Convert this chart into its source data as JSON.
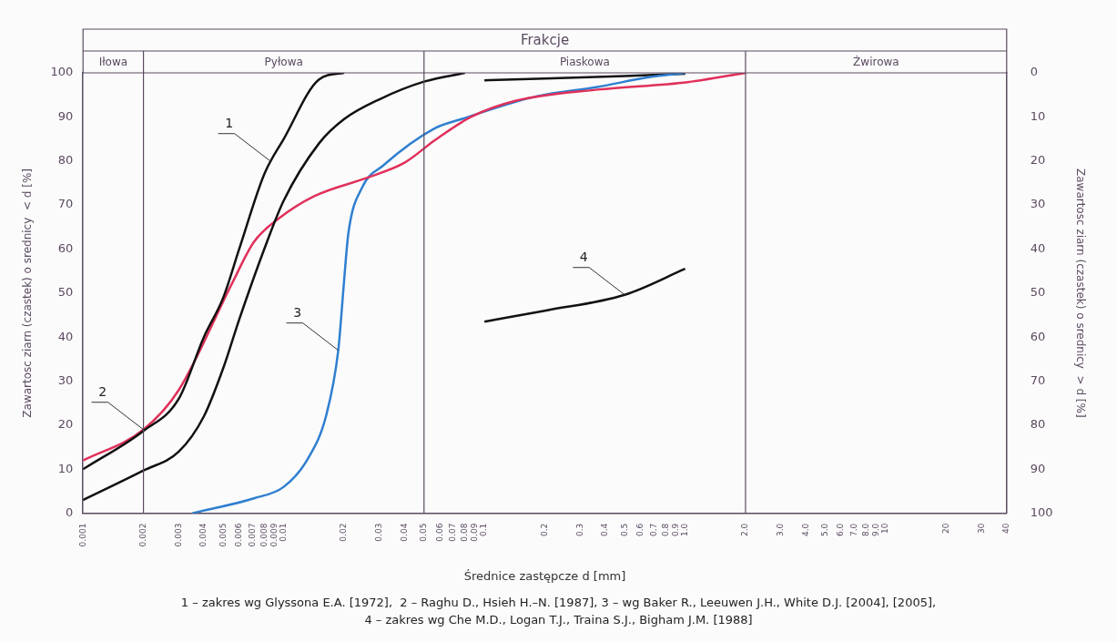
{
  "chart_data": {
    "type": "line",
    "title": "Frakcje",
    "xlabel": "Średnice zastępcze d [mm]",
    "ylabel": "Zawartosc ziarn (czastek) o srednicy  < d [%]",
    "y2label": "Zawartosc ziarn (czastek) o srednicy  > d [%]",
    "log": "x",
    "grid": false,
    "legend": false,
    "xlim": [
      0.001,
      40
    ],
    "xticks": [
      0.001,
      0.002,
      0.003,
      0.004,
      0.005,
      0.006,
      0.007,
      0.008,
      0.009,
      0.01,
      0.02,
      0.03,
      0.04,
      0.05,
      0.06,
      0.07,
      0.08,
      0.09,
      0.1,
      0.2,
      0.3,
      0.4,
      0.5,
      0.6,
      0.7,
      0.8,
      0.9,
      {
        "value": 1,
        "label": "1.0"
      },
      {
        "value": 2,
        "label": "2.0"
      },
      {
        "value": 3,
        "label": "3.0"
      },
      {
        "value": 4,
        "label": "4.0"
      },
      {
        "value": 5,
        "label": "5.0"
      },
      {
        "value": 6,
        "label": "6.0"
      },
      {
        "value": 7,
        "label": "7.0"
      },
      {
        "value": 8,
        "label": "8.0"
      },
      {
        "value": 9,
        "label": "9.0"
      },
      10,
      20,
      30,
      40
    ],
    "ylim": [
      0,
      100
    ],
    "yticks": [
      0,
      10,
      20,
      30,
      40,
      50,
      60,
      70,
      80,
      90,
      100
    ],
    "y2lim": [
      100,
      0
    ],
    "y2ticks": [
      0,
      10,
      20,
      30,
      40,
      50,
      60,
      70,
      80,
      90,
      100
    ],
    "ref_lines": [
      {
        "axis": "x",
        "value": 0.002
      },
      {
        "axis": "x",
        "value": 0.05
      },
      {
        "axis": "x",
        "value": 2
      }
    ],
    "annotations": [
      {
        "text": "1",
        "x": 0.00855,
        "y": 80
      },
      {
        "text": "2",
        "x": 0.002,
        "y": 19
      },
      {
        "text": "3",
        "x": 0.0187,
        "y": 37
      },
      {
        "text": "4",
        "x": 0.5,
        "y": 49.6
      },
      "Iłowa",
      "Pyłowa",
      "Piaskowa",
      "Żwirowa",
      "1 – zakres wg Glyssona E.A. [1972],  2 – Raghu D., Hsieh H.–N. [1987], 3 – wg Baker R., Leeuwen J.H., White D.J. [2004], [2005],",
      "4 – zakres wg Che M.D., Logan T.J., Traina S.J., Bigham J.M. [1988]"
    ],
    "series": [
      {
        "type": "line",
        "color": "#111111",
        "x": [
          0.001,
          0.002,
          0.003,
          0.004,
          0.005,
          0.006,
          0.008,
          0.01,
          0.015,
          0.02
        ],
        "values": [
          10,
          18.7,
          26,
          40,
          49,
          60,
          77,
          85,
          98.5,
          100
        ]
      },
      {
        "type": "line",
        "color": "#111111",
        "x": [
          0.001,
          0.002,
          0.003,
          0.004,
          0.005,
          0.006,
          0.008,
          0.01,
          0.015,
          0.02,
          0.03,
          0.05,
          0.08
        ],
        "values": [
          3,
          9.7,
          14,
          22,
          33,
          44,
          60,
          71,
          84,
          89.5,
          94,
          98,
          100
        ]
      },
      {
        "type": "line",
        "color": "#e0305a",
        "x": [
          0.001,
          0.002,
          0.003,
          0.0055,
          0.0071,
          0.0095,
          0.0142,
          0.0265,
          0.04,
          0.0566,
          0.0857,
          0.144,
          0.366,
          1.03,
          2
        ],
        "values": [
          12,
          19,
          28,
          52,
          61.6,
          67,
          72,
          76.3,
          79.6,
          84.7,
          90,
          93.7,
          96.2,
          97.9,
          100
        ]
      },
      {
        "type": "line",
        "color": "#2f7fd0",
        "x": [
          0.0035,
          0.0071,
          0.01,
          0.0132,
          0.0163,
          0.0187,
          0.0194,
          0.02,
          0.021,
          0.0246,
          0.0314,
          0.0566,
          0.077,
          0.183,
          0.366,
          0.66,
          1
        ],
        "values": [
          0,
          3.4,
          6,
          12.4,
          22.3,
          37,
          45.4,
          53,
          63.6,
          74,
          79,
          87.4,
          89.5,
          94.7,
          96.8,
          99,
          100
        ]
      },
      {
        "type": "line",
        "color": "#111111",
        "x": [
          0.1,
          0.2,
          0.5,
          1
        ],
        "values": [
          98.3,
          98.7,
          99.3,
          99.8
        ]
      },
      {
        "type": "line",
        "color": "#111111",
        "x": [
          0.1,
          0.2,
          0.5,
          1
        ],
        "values": [
          43.5,
          46,
          49.6,
          55.5
        ]
      }
    ]
  }
}
